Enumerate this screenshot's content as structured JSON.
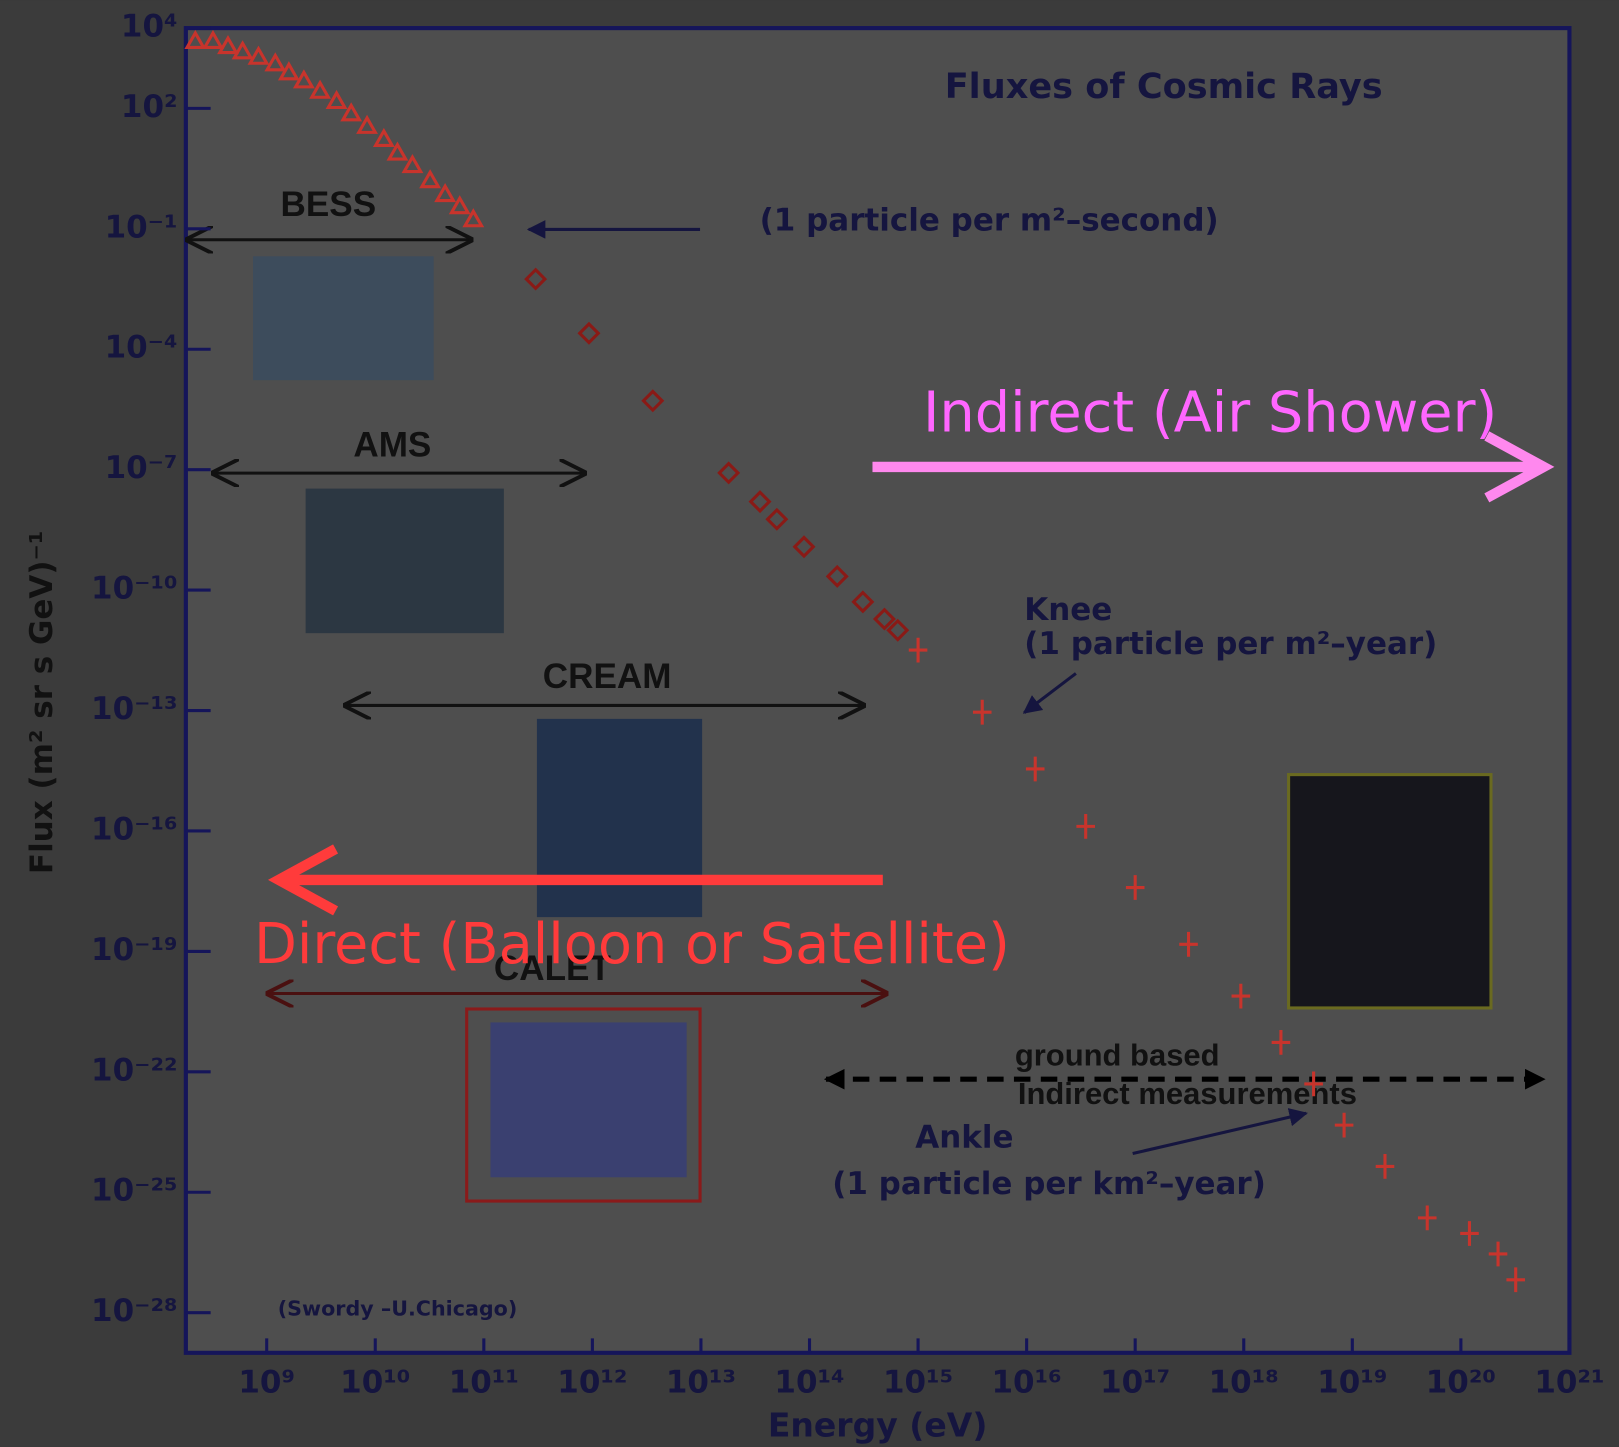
{
  "chart_data": {
    "type": "scatter",
    "title": "Fluxes of Cosmic Rays",
    "x_label": "Energy (eV)",
    "y_label": "Flux (m² sr s GeV)⁻¹",
    "log_x": true,
    "log_y": true,
    "xlim": [
      180000000.0,
      1e+21
    ],
    "ylim": [
      1e-29,
      10000.0
    ],
    "xticks": [
      {
        "value": 1000000000.0,
        "label": "10⁹"
      },
      {
        "value": 10000000000.0,
        "label": "10¹⁰"
      },
      {
        "value": 100000000000.0,
        "label": "10¹¹"
      },
      {
        "value": 1000000000000.0,
        "label": "10¹²"
      },
      {
        "value": 10000000000000.0,
        "label": "10¹³"
      },
      {
        "value": 100000000000000.0,
        "label": "10¹⁴"
      },
      {
        "value": 1000000000000000.0,
        "label": "10¹⁵"
      },
      {
        "value": 1e+16,
        "label": "10¹⁶"
      },
      {
        "value": 1e+17,
        "label": "10¹⁷"
      },
      {
        "value": 1e+18,
        "label": "10¹⁸"
      },
      {
        "value": 1e+19,
        "label": "10¹⁹"
      },
      {
        "value": 1e+20,
        "label": "10²⁰"
      },
      {
        "value": 1e+21,
        "label": "10²¹"
      }
    ],
    "yticks": [
      {
        "value": 10000.0,
        "label": "10⁴"
      },
      {
        "value": 100.0,
        "label": "10²"
      },
      {
        "value": 0.1,
        "label": "10⁻¹"
      },
      {
        "value": 0.0001,
        "label": "10⁻⁴"
      },
      {
        "value": 1e-07,
        "label": "10⁻⁷"
      },
      {
        "value": 1e-10,
        "label": "10⁻¹⁰"
      },
      {
        "value": 1e-13,
        "label": "10⁻¹³"
      },
      {
        "value": 1e-16,
        "label": "10⁻¹⁶"
      },
      {
        "value": 1e-19,
        "label": "10⁻¹⁹"
      },
      {
        "value": 1e-22,
        "label": "10⁻²²"
      },
      {
        "value": 1e-25,
        "label": "10⁻²⁵"
      },
      {
        "value": 1e-28,
        "label": "10⁻²⁸"
      }
    ],
    "series": [
      {
        "marker": "triangle",
        "color": "#c8342c",
        "x": [
          220000000.0,
          320000000.0,
          440000000.0,
          600000000.0,
          840000000.0,
          1200000000.0,
          1600000000.0,
          2200000000.0,
          3100000000.0,
          4400000000.0,
          6000000000.0,
          8400000000.0,
          12000000000.0,
          16000000000.0,
          22000000000.0,
          32000000000.0,
          44000000000.0,
          60000000000.0,
          80000000000.0
        ],
        "values": [
          4700.0,
          4700.0,
          3500.0,
          2600.0,
          1900.0,
          1300.0,
          780.0,
          490.0,
          270.0,
          150.0,
          74,
          36,
          17,
          7.8,
          3.8,
          1.6,
          0.72,
          0.36,
          0.17
        ]
      },
      {
        "marker": "diamond",
        "color": "#8a1a16",
        "x": [
          300000000000.0,
          930000000000.0,
          3600000000000.0,
          18000000000000.0,
          35000000000000.0,
          50000000000000.0,
          89000000000000.0,
          180000000000000.0,
          310000000000000.0,
          490000000000000.0,
          650000000000000.0
        ],
        "values": [
          0.0056,
          0.00025,
          5.2e-06,
          8.3e-08,
          1.6e-08,
          5.8e-09,
          1.2e-09,
          2.2e-10,
          5.1e-11,
          1.9e-11,
          1e-11
        ]
      },
      {
        "marker": "cross",
        "color": "#c8342c",
        "x": [
          1000000000000000.0,
          3900000000000000.0,
          1.2e+16,
          3.5e+16,
          1e+17,
          3.1e+17,
          9.4e+17,
          2.2e+18,
          4.4e+18,
          8.4e+18,
          2e+19,
          4.9e+19,
          1.2e+20,
          2.2e+20,
          3.2e+20
        ],
        "values": [
          3.2e-12,
          9.1e-14,
          3.5e-15,
          1.3e-16,
          3.9e-18,
          1.5e-19,
          7.7e-21,
          5.4e-22,
          5e-23,
          4.7e-24,
          4.4e-25,
          2.3e-26,
          9.4e-27,
          2.9e-27,
          6.6e-28
        ]
      }
    ],
    "annotations": [
      "(1 particle per m²–second)",
      "BESS",
      "AMS",
      "CREAM",
      "CALET",
      "Knee",
      "(1 particle per m²–year)",
      "ground based",
      "Indirect measurements",
      "Ankle",
      "(1 particle per km²–year)",
      "(Swordy –U.Chicago)",
      "Indirect (Air Shower)",
      "Direct (Balloon or Satellite)"
    ]
  }
}
